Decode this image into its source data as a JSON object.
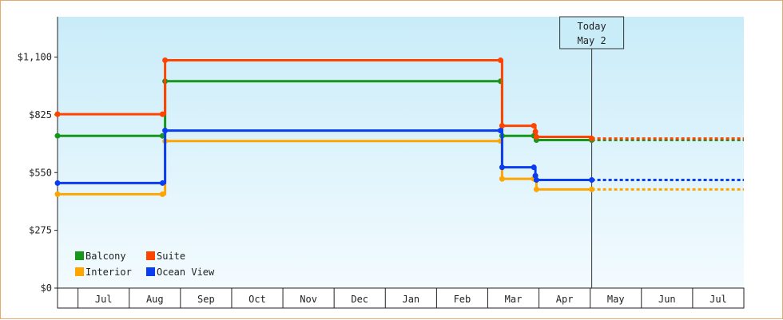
{
  "chart_data": {
    "type": "line",
    "step": true,
    "ylim": [
      0,
      1292
    ],
    "yticks": [
      {
        "value": 0,
        "label": "$0"
      },
      {
        "value": 275,
        "label": "$275"
      },
      {
        "value": 550,
        "label": "$550"
      },
      {
        "value": 825,
        "label": "$825"
      },
      {
        "value": 1100,
        "label": "$1,100"
      }
    ],
    "x_domain": [
      -0.4,
      13.0
    ],
    "x_categories": [
      {
        "pos": 0.5,
        "label": "Jul"
      },
      {
        "pos": 1.5,
        "label": "Aug"
      },
      {
        "pos": 2.5,
        "label": "Sep"
      },
      {
        "pos": 3.5,
        "label": "Oct"
      },
      {
        "pos": 4.5,
        "label": "Nov"
      },
      {
        "pos": 5.5,
        "label": "Dec"
      },
      {
        "pos": 6.5,
        "label": "Jan"
      },
      {
        "pos": 7.5,
        "label": "Feb"
      },
      {
        "pos": 8.5,
        "label": "Mar"
      },
      {
        "pos": 9.5,
        "label": "Apr"
      },
      {
        "pos": 10.5,
        "label": "May"
      },
      {
        "pos": 11.5,
        "label": "Jun"
      },
      {
        "pos": 12.5,
        "label": "Jul"
      }
    ],
    "x_boundaries": [
      0,
      1,
      2,
      3,
      4,
      5,
      6,
      7,
      8,
      9,
      10,
      11,
      12
    ],
    "today": {
      "x": 10.03,
      "line1": "Today",
      "line2": "May 2"
    },
    "x_end": 13.0,
    "grid": false,
    "legend_position": "bottom-left",
    "series": [
      {
        "name": "Balcony",
        "color": "#17961c",
        "points": [
          [
            -0.4,
            725
          ],
          [
            1.65,
            725
          ],
          [
            1.7,
            985
          ],
          [
            8.25,
            985
          ],
          [
            8.28,
            725
          ],
          [
            8.9,
            725
          ],
          [
            8.95,
            705
          ],
          [
            10.03,
            705
          ]
        ]
      },
      {
        "name": "Suite",
        "color": "#ff4400",
        "points": [
          [
            -0.4,
            828
          ],
          [
            1.65,
            828
          ],
          [
            1.7,
            1085
          ],
          [
            8.25,
            1085
          ],
          [
            8.28,
            773
          ],
          [
            8.9,
            773
          ],
          [
            8.93,
            745
          ],
          [
            8.95,
            720
          ],
          [
            10.03,
            712
          ]
        ]
      },
      {
        "name": "Interior",
        "color": "#ffa500",
        "points": [
          [
            -0.4,
            447
          ],
          [
            1.65,
            447
          ],
          [
            1.7,
            700
          ],
          [
            8.25,
            700
          ],
          [
            8.28,
            520
          ],
          [
            8.9,
            520
          ],
          [
            8.95,
            470
          ],
          [
            10.03,
            470
          ]
        ]
      },
      {
        "name": "Ocean View",
        "color": "#0a3cf0",
        "points": [
          [
            -0.4,
            500
          ],
          [
            1.65,
            500
          ],
          [
            1.7,
            750
          ],
          [
            8.25,
            750
          ],
          [
            8.28,
            575
          ],
          [
            8.9,
            575
          ],
          [
            8.93,
            535
          ],
          [
            8.95,
            515
          ],
          [
            10.03,
            515
          ]
        ]
      }
    ]
  }
}
